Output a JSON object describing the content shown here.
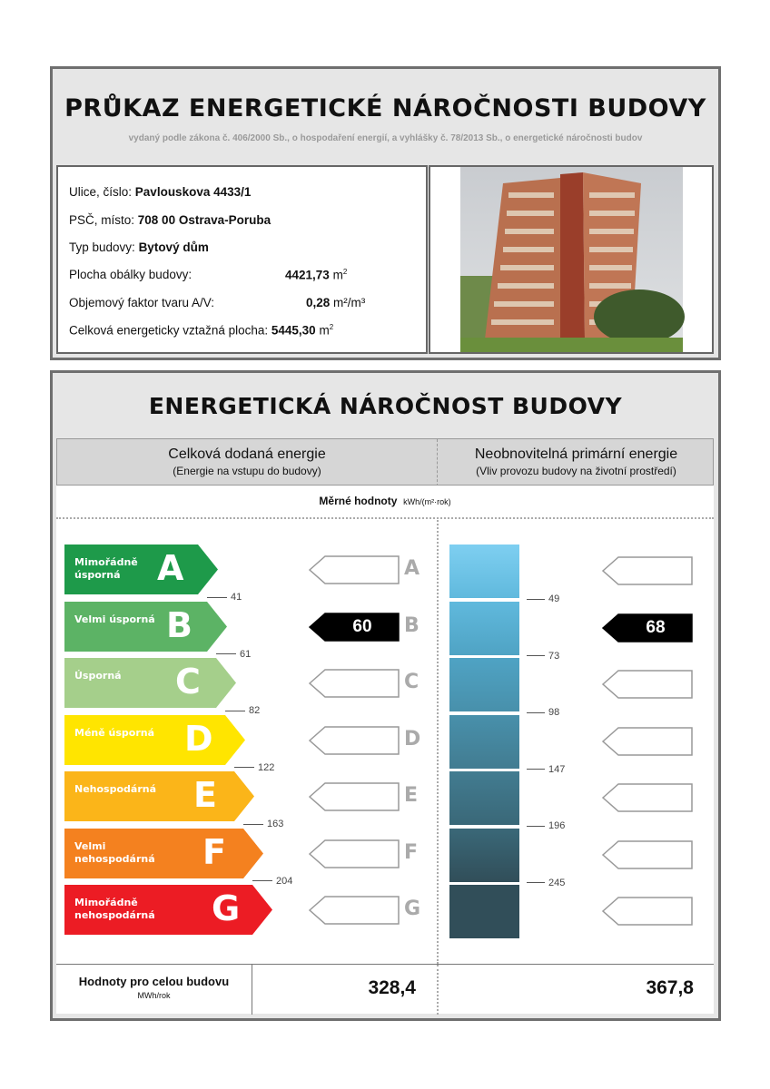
{
  "header": {
    "title": "PRŮKAZ ENERGETICKÉ NÁROČNOSTI BUDOVY",
    "subtitle": "vydaný podle zákona č. 406/2000 Sb., o hospodaření energií, a vyhlášky č. 78/2013 Sb., o energetické náročnosti budov"
  },
  "building": {
    "street_label": "Ulice, číslo:",
    "street": "Pavlouskova 4433/1",
    "city_label": "PSČ, místo:",
    "city": "708 00 Ostrava-Poruba",
    "type_label": "Typ budovy:",
    "type": "Bytový dům",
    "envelope_label": "Plocha obálky budovy:",
    "envelope": "4421,73",
    "envelope_unit": "m",
    "shape_label": "Objemový faktor tvaru A/V:",
    "shape": "0,28",
    "shape_unit": "m²/m³",
    "area_label": "Celková energeticky vztažná plocha:",
    "area": "5445,30",
    "area_unit": "m"
  },
  "section": {
    "title": "ENERGETICKÁ NÁROČNOST BUDOVY",
    "left_title": "Celková dodaná energie",
    "left_sub": "(Energie na vstupu do budovy)",
    "right_title": "Neobnovitelná primární energie",
    "right_sub": "(Vliv provozu budovy na životní prostředí)",
    "specific_label": "Měrné hodnoty",
    "specific_unit": "kWh/(m²·rok)"
  },
  "classes": [
    {
      "letter": "A",
      "label": "Mimořádně úsporná",
      "color": "#1e9a4a"
    },
    {
      "letter": "B",
      "label": "Velmi úsporná",
      "color": "#5cb365"
    },
    {
      "letter": "C",
      "label": "Úsporná",
      "color": "#a5cf8b"
    },
    {
      "letter": "D",
      "label": "Méně úsporná",
      "color": "#ffe500"
    },
    {
      "letter": "E",
      "label": "Nehospodárná",
      "color": "#fbb519"
    },
    {
      "letter": "F",
      "label": "Velmi nehospodárná",
      "color": "#f4811f"
    },
    {
      "letter": "G",
      "label": "Mimořádně nehospodárná",
      "color": "#ec1c24"
    }
  ],
  "delivered": {
    "thresholds": [
      "41",
      "61",
      "82",
      "122",
      "163",
      "204"
    ],
    "value": "60",
    "class": "B"
  },
  "primary": {
    "thresholds": [
      "49",
      "73",
      "98",
      "147",
      "196",
      "245"
    ],
    "value": "68",
    "class": "B",
    "colors": [
      "#7ecff1",
      "#60b9dd",
      "#4fa3c4",
      "#4890ab",
      "#427c91",
      "#3a6878",
      "#314e59"
    ]
  },
  "totals": {
    "label": "Hodnoty pro celou budovu",
    "unit": "MWh/rok",
    "delivered": "328,4",
    "primary": "367,8"
  }
}
